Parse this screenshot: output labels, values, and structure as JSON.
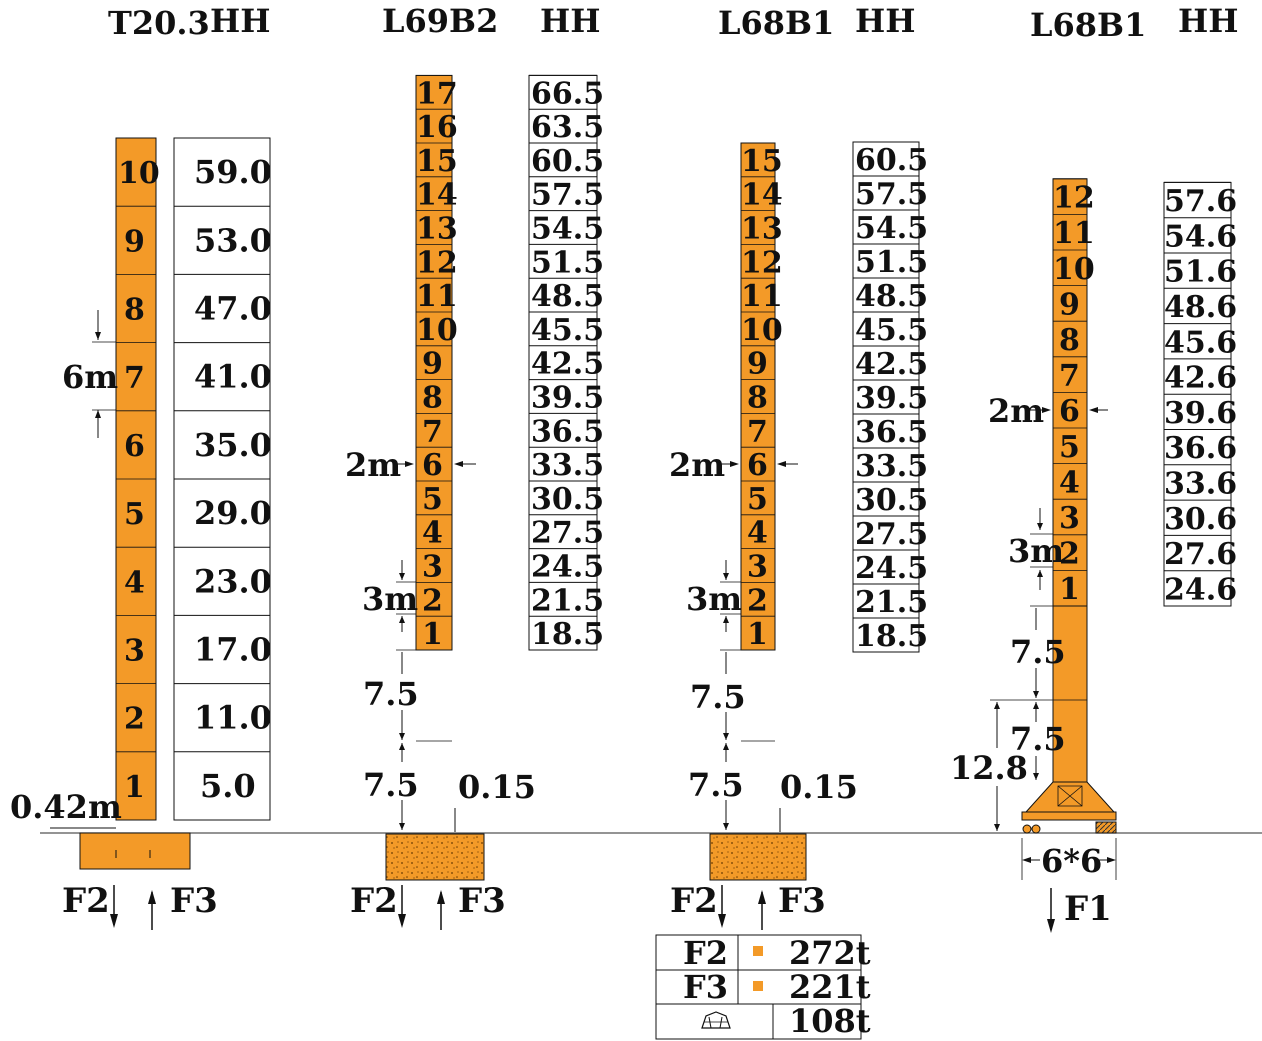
{
  "diagram": {
    "colors": {
      "mast": "#F39A28",
      "concrete": "#F39A28",
      "line": "#111111",
      "ground": "#555555"
    },
    "cranes": [
      {
        "title": "T20.3",
        "hh_title": "HH",
        "segments": [
          "1",
          "2",
          "3",
          "4",
          "5",
          "6",
          "7",
          "8",
          "9",
          "10"
        ],
        "heights": [
          "5.0",
          "11.0",
          "17.0",
          "23.0",
          "29.0",
          "35.0",
          "41.0",
          "47.0",
          "53.0",
          "59.0"
        ],
        "segment_dim": "6m",
        "base_dim": "0.42m",
        "forces": [
          "F2",
          "F3"
        ]
      },
      {
        "title": "L69B2",
        "hh_title": "HH",
        "segments": [
          "1",
          "2",
          "3",
          "4",
          "5",
          "6",
          "7",
          "8",
          "9",
          "10",
          "11",
          "12",
          "13",
          "14",
          "15",
          "16",
          "17"
        ],
        "heights": [
          "18.5",
          "21.5",
          "24.5",
          "27.5",
          "30.5",
          "33.5",
          "36.5",
          "39.5",
          "42.5",
          "45.5",
          "48.5",
          "51.5",
          "54.5",
          "57.5",
          "60.5",
          "63.5",
          "66.5"
        ],
        "dim_2m": "2m",
        "dim_3m": "3m",
        "dim_7_5_upper": "7.5",
        "dim_7_5_lower": "7.5",
        "dim_0_15": "0.15",
        "forces": [
          "F2",
          "F3"
        ]
      },
      {
        "title": "L68B1",
        "hh_title": "HH",
        "segments": [
          "1",
          "2",
          "3",
          "4",
          "5",
          "6",
          "7",
          "8",
          "9",
          "10",
          "11",
          "12",
          "13",
          "14",
          "15"
        ],
        "heights": [
          "18.5",
          "21.5",
          "24.5",
          "27.5",
          "30.5",
          "33.5",
          "36.5",
          "39.5",
          "42.5",
          "45.5",
          "48.5",
          "51.5",
          "54.5",
          "57.5",
          "60.5"
        ],
        "dim_2m": "2m",
        "dim_3m": "3m",
        "dim_7_5_upper": "7.5",
        "dim_7_5_lower": "7.5",
        "dim_0_15": "0.15",
        "forces": [
          "F2",
          "F3"
        ]
      },
      {
        "title": "L68B1",
        "hh_title": "HH",
        "segments": [
          "1",
          "2",
          "3",
          "4",
          "5",
          "6",
          "7",
          "8",
          "9",
          "10",
          "11",
          "12"
        ],
        "heights": [
          "24.6",
          "27.6",
          "30.6",
          "33.6",
          "36.6",
          "39.6",
          "42.6",
          "45.6",
          "48.6",
          "51.6",
          "54.6",
          "57.6"
        ],
        "dim_2m": "2m",
        "dim_3m": "3m",
        "dim_7_5_upper": "7.5",
        "dim_7_5_lower": "7.5",
        "dim_12_8": "12.8",
        "base_size": "6*6",
        "forces": [
          "F1"
        ]
      }
    ],
    "load_table": [
      {
        "label": "F2",
        "value": "272t"
      },
      {
        "label": "F3",
        "value": "221t"
      },
      {
        "icon": "ballast-block-icon",
        "value": "108t"
      }
    ]
  }
}
